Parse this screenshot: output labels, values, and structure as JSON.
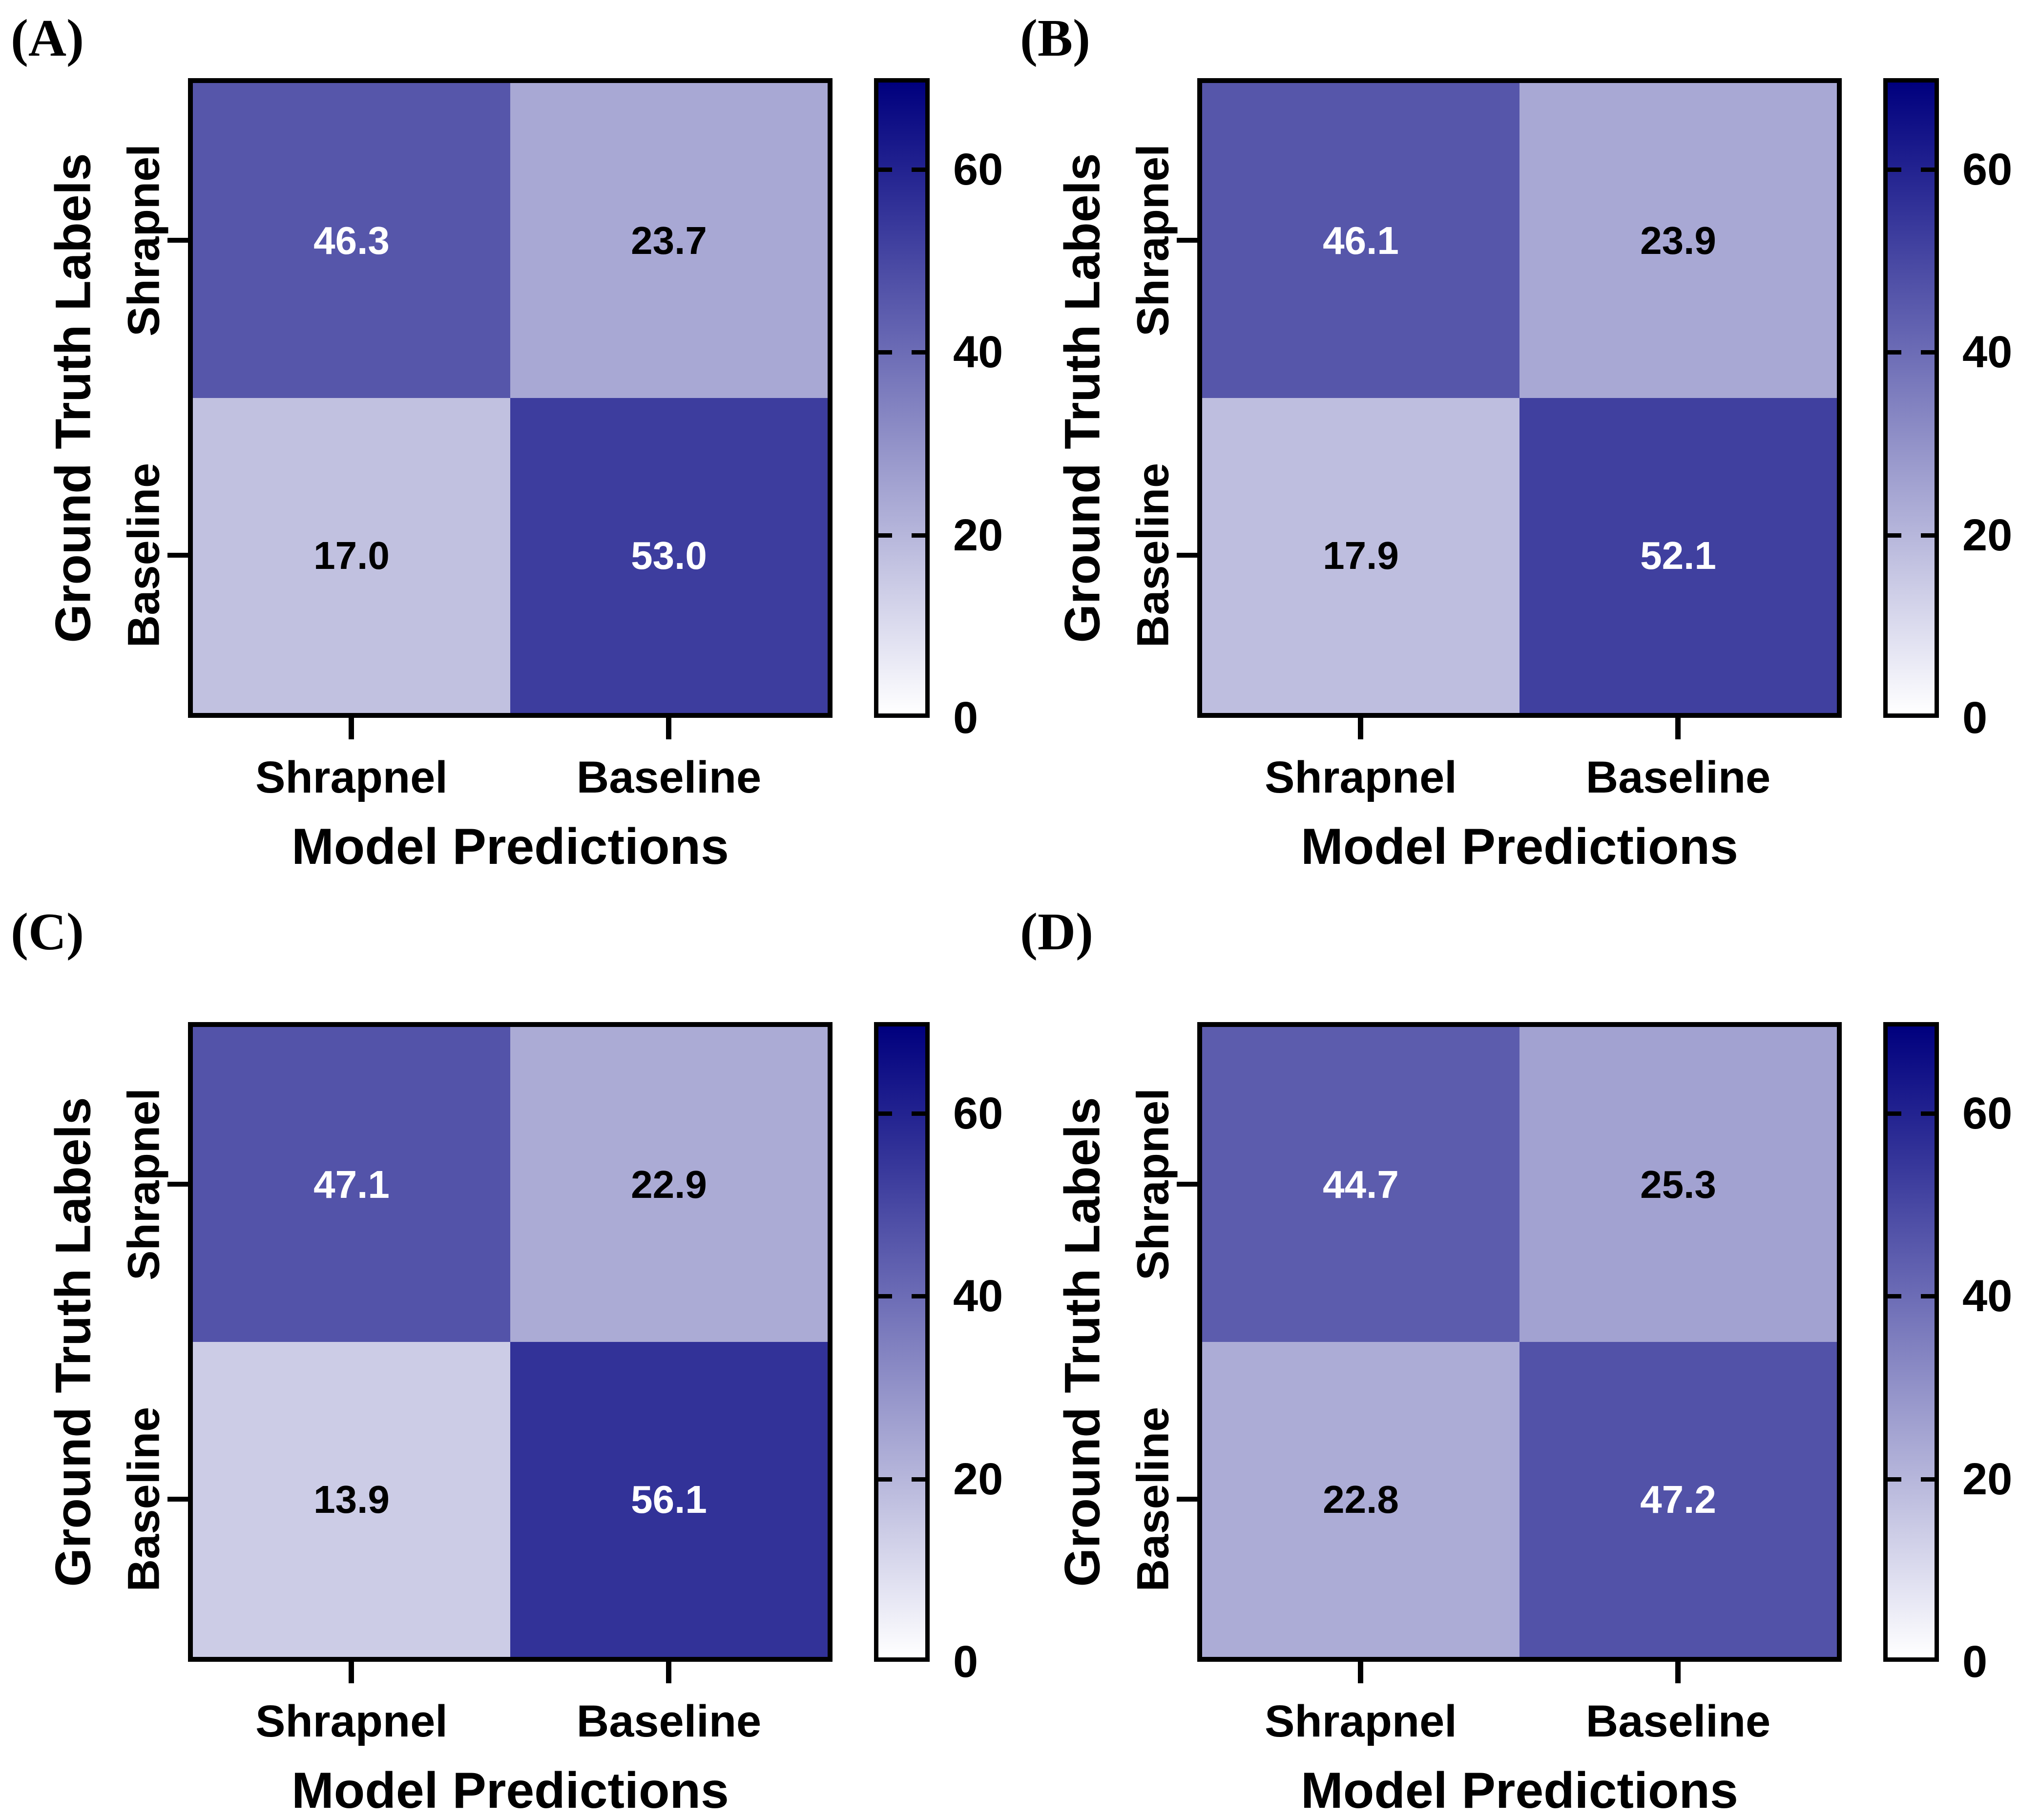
{
  "figure": {
    "background": "#ffffff",
    "frame_color": "#000000",
    "colormap": {
      "low": "#ffffff",
      "high": "#00007e",
      "vmin": 0,
      "vmax": 70
    },
    "cell_text_light": "#ffffff",
    "cell_text_dark": "#000000",
    "white_text_threshold": 35
  },
  "axes": {
    "x_label": "Model Predictions",
    "y_label": "Ground Truth Labels",
    "x_tick_labels": [
      "Shrapnel",
      "Baseline"
    ],
    "y_tick_labels": [
      "Shrapnel",
      "Baseline"
    ]
  },
  "colorbar": {
    "tick_values": [
      0,
      20,
      40,
      60
    ],
    "inner_tick_values": [
      20,
      40,
      60
    ],
    "vmin": 0,
    "vmax": 70
  },
  "chart_data": [
    {
      "type": "heatmap",
      "panel": "(A)",
      "rows": [
        "Shrapnel",
        "Baseline"
      ],
      "cols": [
        "Shrapnel",
        "Baseline"
      ],
      "values": [
        [
          46.3,
          23.7
        ],
        [
          17.0,
          53.0
        ]
      ],
      "xlabel": "Model Predictions",
      "ylabel": "Ground Truth Labels",
      "vmin": 0,
      "vmax": 70,
      "colorbar_ticks": [
        0,
        20,
        40,
        60
      ]
    },
    {
      "type": "heatmap",
      "panel": "(B)",
      "rows": [
        "Shrapnel",
        "Baseline"
      ],
      "cols": [
        "Shrapnel",
        "Baseline"
      ],
      "values": [
        [
          46.1,
          23.9
        ],
        [
          17.9,
          52.1
        ]
      ],
      "xlabel": "Model Predictions",
      "ylabel": "Ground Truth Labels",
      "vmin": 0,
      "vmax": 70,
      "colorbar_ticks": [
        0,
        20,
        40,
        60
      ]
    },
    {
      "type": "heatmap",
      "panel": "(C)",
      "rows": [
        "Shrapnel",
        "Baseline"
      ],
      "cols": [
        "Shrapnel",
        "Baseline"
      ],
      "values": [
        [
          47.1,
          22.9
        ],
        [
          13.9,
          56.1
        ]
      ],
      "xlabel": "Model Predictions",
      "ylabel": "Ground Truth Labels",
      "vmin": 0,
      "vmax": 70,
      "colorbar_ticks": [
        0,
        20,
        40,
        60
      ]
    },
    {
      "type": "heatmap",
      "panel": "(D)",
      "rows": [
        "Shrapnel",
        "Baseline"
      ],
      "cols": [
        "Shrapnel",
        "Baseline"
      ],
      "values": [
        [
          44.7,
          25.3
        ],
        [
          22.8,
          47.2
        ]
      ],
      "xlabel": "Model Predictions",
      "ylabel": "Ground Truth Labels",
      "vmin": 0,
      "vmax": 70,
      "colorbar_ticks": [
        0,
        20,
        40,
        60
      ]
    }
  ]
}
